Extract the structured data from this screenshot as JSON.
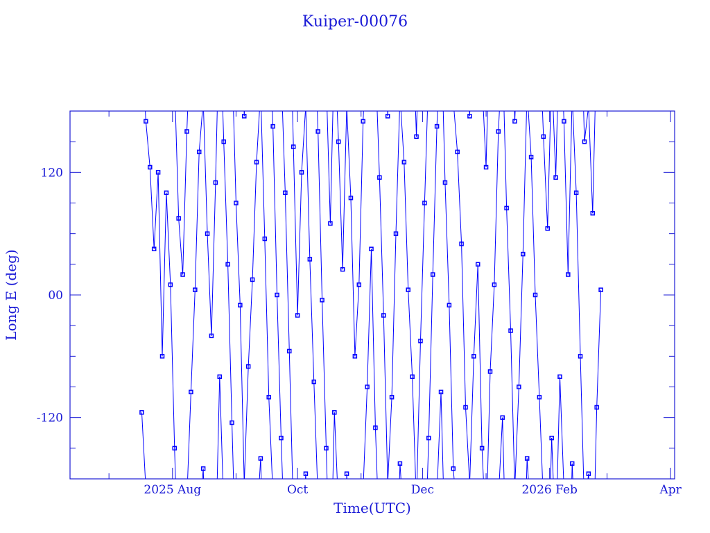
{
  "chart_data": {
    "type": "line",
    "title": "Kuiper-00076",
    "xlabel": "Time(UTC)",
    "ylabel": "Long E (deg)",
    "xlim": [
      "2025-06-12",
      "2026-04-03"
    ],
    "ylim": [
      -180,
      180
    ],
    "yticks": [
      120,
      0,
      -120
    ],
    "ytick_labels": [
      "120",
      "00",
      "-120"
    ],
    "xticks": [
      "2025-08-01",
      "2025-10-01",
      "2025-12-01",
      "2026-02-01",
      "2026-04-01"
    ],
    "xtick_labels": [
      "2025 Aug",
      "Oct",
      "Dec",
      "2026 Feb",
      "Apr"
    ],
    "grid": false,
    "marker": "square",
    "color": "#0000ff",
    "axis_color": "#1a1ad6",
    "x": [
      "2025-07-17",
      "2025-07-19",
      "2025-07-21",
      "2025-07-23",
      "2025-07-25",
      "2025-07-27",
      "2025-07-29",
      "2025-07-31",
      "2025-08-02",
      "2025-08-04",
      "2025-08-06",
      "2025-08-08",
      "2025-08-10",
      "2025-08-12",
      "2025-08-14",
      "2025-08-16",
      "2025-08-18",
      "2025-08-20",
      "2025-08-22",
      "2025-08-24",
      "2025-08-26",
      "2025-08-28",
      "2025-08-30",
      "2025-09-01",
      "2025-09-03",
      "2025-09-05",
      "2025-09-07",
      "2025-09-09",
      "2025-09-11",
      "2025-09-13",
      "2025-09-15",
      "2025-09-17",
      "2025-09-19",
      "2025-09-21",
      "2025-09-23",
      "2025-09-25",
      "2025-09-27",
      "2025-09-29",
      "2025-10-01",
      "2025-10-03",
      "2025-10-05",
      "2025-10-07",
      "2025-10-09",
      "2025-10-11",
      "2025-10-13",
      "2025-10-15",
      "2025-10-17",
      "2025-10-19",
      "2025-10-21",
      "2025-10-23",
      "2025-10-25",
      "2025-10-27",
      "2025-10-29",
      "2025-10-31",
      "2025-11-02",
      "2025-11-04",
      "2025-11-06",
      "2025-11-08",
      "2025-11-10",
      "2025-11-12",
      "2025-11-14",
      "2025-11-16",
      "2025-11-18",
      "2025-11-20",
      "2025-11-22",
      "2025-11-24",
      "2025-11-26",
      "2025-11-28",
      "2025-11-30",
      "2025-12-02",
      "2025-12-04",
      "2025-12-06",
      "2025-12-08",
      "2025-12-10",
      "2025-12-12",
      "2025-12-14",
      "2025-12-16",
      "2025-12-18",
      "2025-12-20",
      "2025-12-22",
      "2025-12-24",
      "2025-12-26",
      "2025-12-28",
      "2025-12-30",
      "2026-01-01",
      "2026-01-03",
      "2026-01-05",
      "2026-01-07",
      "2026-01-09",
      "2026-01-11",
      "2026-01-13",
      "2026-01-15",
      "2026-01-17",
      "2026-01-19",
      "2026-01-21",
      "2026-01-23",
      "2026-01-25",
      "2026-01-27",
      "2026-01-29",
      "2026-01-31",
      "2026-02-02",
      "2026-02-04",
      "2026-02-06",
      "2026-02-08",
      "2026-02-10",
      "2026-02-12",
      "2026-02-14",
      "2026-02-16",
      "2026-02-18",
      "2026-02-20",
      "2026-02-22",
      "2026-02-24",
      "2026-02-26"
    ],
    "y": [
      -115,
      170,
      125,
      45,
      120,
      -60,
      100,
      10,
      -150,
      75,
      20,
      160,
      -95,
      5,
      140,
      -170,
      60,
      -40,
      110,
      -80,
      150,
      30,
      -125,
      90,
      -10,
      175,
      -70,
      15,
      130,
      -160,
      55,
      -100,
      165,
      0,
      -140,
      100,
      -55,
      145,
      -20,
      120,
      -175,
      35,
      -85,
      160,
      -5,
      -150,
      70,
      -115,
      150,
      25,
      -175,
      95,
      -60,
      10,
      170,
      -90,
      45,
      -130,
      115,
      -20,
      175,
      -100,
      60,
      -165,
      130,
      5,
      -80,
      155,
      -45,
      90,
      -140,
      20,
      165,
      -95,
      110,
      -10,
      -170,
      140,
      50,
      -110,
      175,
      -60,
      30,
      -150,
      125,
      -75,
      10,
      160,
      -120,
      85,
      -35,
      170,
      -90,
      40,
      -160,
      135,
      0,
      -100,
      155,
      65,
      -140,
      115,
      -80,
      170,
      20,
      -165,
      100,
      -60,
      150,
      -175,
      80,
      -110,
      5
    ]
  }
}
